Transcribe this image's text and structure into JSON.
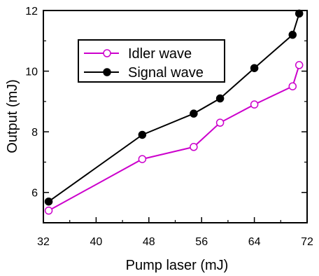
{
  "chart_data": {
    "type": "line",
    "title": "",
    "xlabel": "Pump laser (mJ)",
    "ylabel": "Output (mJ)",
    "xlim": [
      32,
      72
    ],
    "ylim": [
      5,
      12
    ],
    "xticks": [
      32,
      40,
      48,
      56,
      64,
      72
    ],
    "yticks": [
      6,
      8,
      10,
      12
    ],
    "xtick_labels": [
      "32",
      "40",
      "48",
      "56",
      "64",
      "72"
    ],
    "ytick_labels": [
      "6",
      "8",
      "10",
      "12"
    ],
    "grid": false,
    "legend_position": "top-left",
    "series": [
      {
        "name": "Idler wave",
        "color": "#cc00cc",
        "marker": "open-circle",
        "x": [
          32.8,
          47.0,
          54.8,
          58.8,
          64.0,
          69.8,
          70.8
        ],
        "y": [
          5.4,
          7.1,
          7.5,
          8.3,
          8.9,
          9.5,
          10.2
        ]
      },
      {
        "name": "Signal wave",
        "color": "#000000",
        "marker": "filled-circle",
        "x": [
          32.8,
          47.0,
          54.8,
          58.8,
          64.0,
          69.8,
          70.8
        ],
        "y": [
          5.7,
          7.9,
          8.6,
          9.1,
          10.1,
          11.2,
          11.9
        ]
      }
    ]
  }
}
